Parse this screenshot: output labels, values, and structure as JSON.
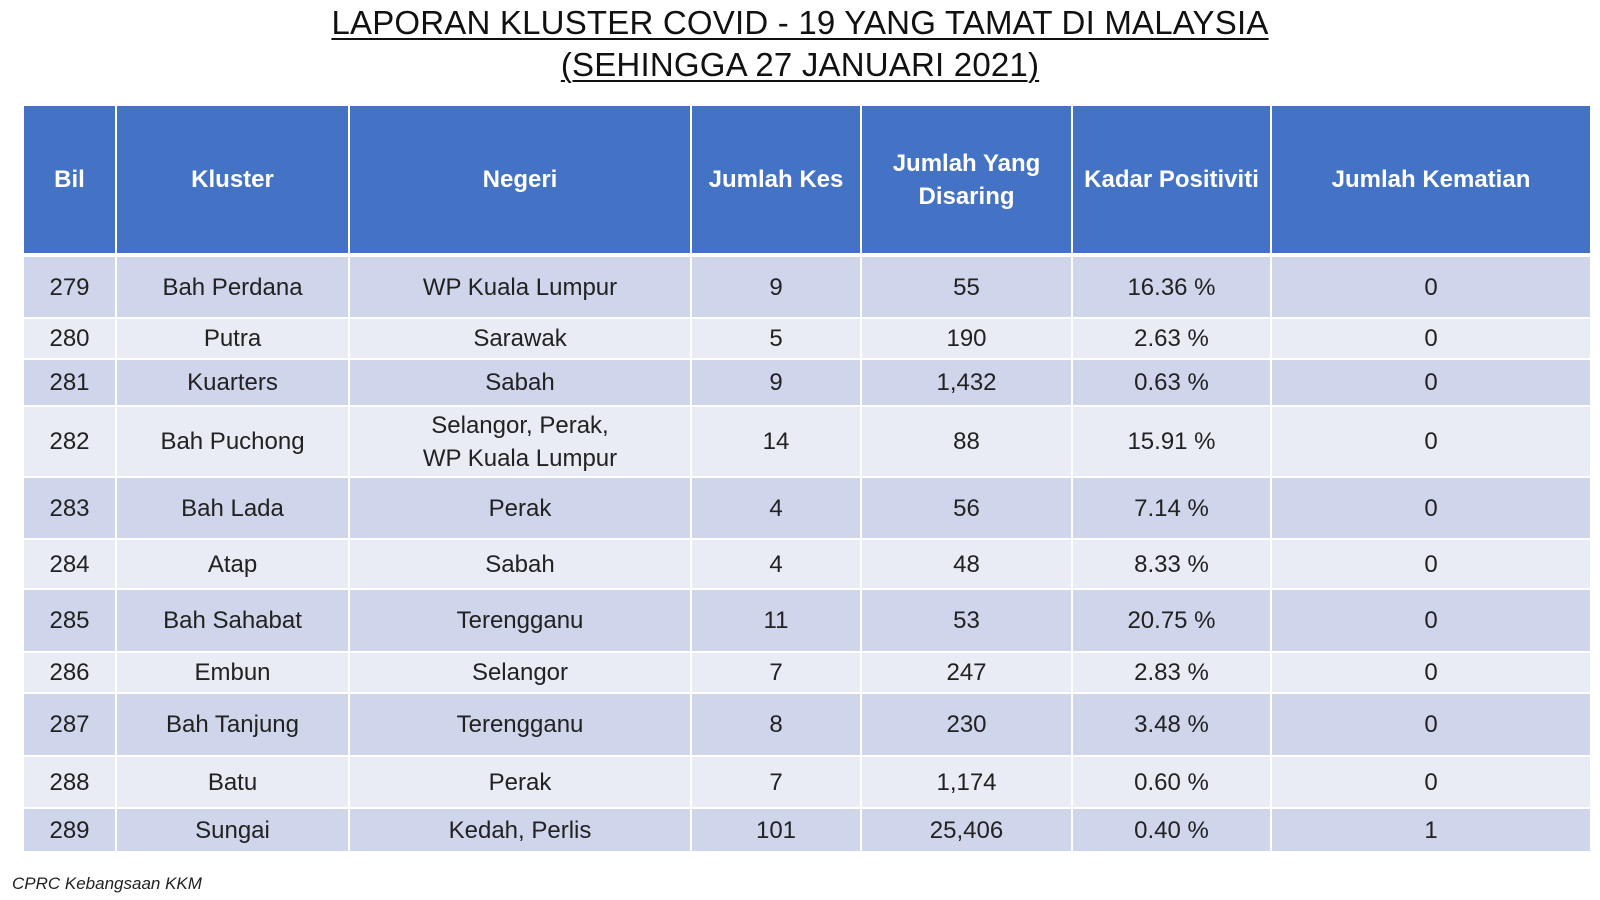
{
  "title": {
    "line1": "LAPORAN KLUSTER COVID - 19 YANG TAMAT DI MALAYSIA",
    "line2": "(SEHINGGA 27 JANUARI 2021)"
  },
  "table": {
    "headers": [
      "Bil",
      "Kluster",
      "Negeri",
      "Jumlah Kes",
      "Jumlah Yang Disaring",
      "Kadar Positiviti",
      "Jumlah Kematian"
    ],
    "rows": [
      [
        "279",
        "Bah Perdana",
        "WP Kuala Lumpur",
        "9",
        "55",
        "16.36 %",
        "0"
      ],
      [
        "280",
        "Putra",
        "Sarawak",
        "5",
        "190",
        "2.63 %",
        "0"
      ],
      [
        "281",
        "Kuarters",
        "Sabah",
        "9",
        "1,432",
        "0.63 %",
        "0"
      ],
      [
        "282",
        "Bah Puchong",
        "Selangor, Perak,\nWP Kuala Lumpur",
        "14",
        "88",
        "15.91 %",
        "0"
      ],
      [
        "283",
        "Bah Lada",
        "Perak",
        "4",
        "56",
        "7.14 %",
        "0"
      ],
      [
        "284",
        "Atap",
        "Sabah",
        "4",
        "48",
        "8.33 %",
        "0"
      ],
      [
        "285",
        "Bah Sahabat",
        "Terengganu",
        "11",
        "53",
        "20.75 %",
        "0"
      ],
      [
        "286",
        "Embun",
        "Selangor",
        "7",
        "247",
        "2.83 %",
        "0"
      ],
      [
        "287",
        "Bah Tanjung",
        "Terengganu",
        "8",
        "230",
        "3.48 %",
        "0"
      ],
      [
        "288",
        "Batu",
        "Perak",
        "7",
        "1,174",
        "0.60 %",
        "0"
      ],
      [
        "289",
        "Sungai",
        "Kedah, Perlis",
        "101",
        "25,406",
        "0.40 %",
        "1"
      ]
    ]
  },
  "source": "CPRC Kebangsaan KKM",
  "colors": {
    "header_bg": "#4472c4",
    "row_dark": "#cfd5ea",
    "row_light": "#e9ebf5"
  }
}
